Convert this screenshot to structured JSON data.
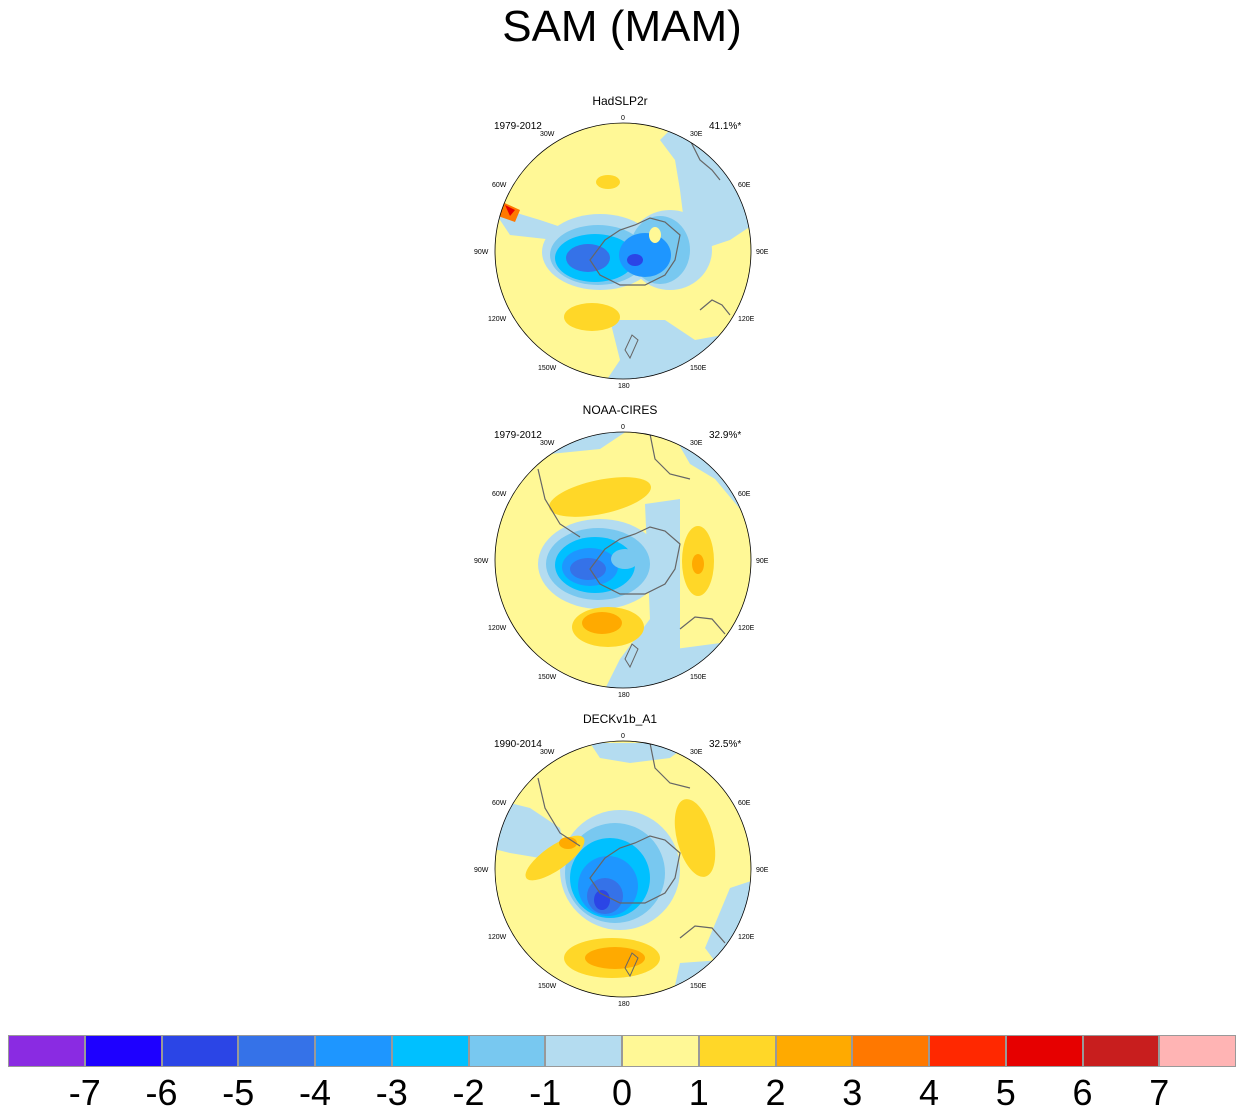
{
  "title": "SAM (MAM)",
  "panels": [
    {
      "name": "HadSLP2r",
      "period": "1979-2012",
      "percent": "41.1%*"
    },
    {
      "name": "NOAA-CIRES",
      "period": "1979-2012",
      "percent": "32.9%*"
    },
    {
      "name": "DECKv1b_A1",
      "period": "1990-2014",
      "percent": "32.5%*"
    }
  ],
  "lon_labels": {
    "n": "0",
    "nne": "30E",
    "ene": "60E",
    "e": "90E",
    "ese": "120E",
    "sse": "150E",
    "s": "180",
    "ssw": "150W",
    "wsw": "120W",
    "w": "90W",
    "wnw": "60W",
    "nnw": "30W"
  },
  "colorbar": {
    "colors": [
      "#8a2be2",
      "#1e00ff",
      "#2b45e6",
      "#3572e8",
      "#1e96ff",
      "#00c0ff",
      "#78c8f0",
      "#b4dcf0",
      "#fff896",
      "#ffd728",
      "#ffaa00",
      "#ff7800",
      "#ff2800",
      "#e60000",
      "#c81e1e",
      "#ffb4b4"
    ],
    "ticks": [
      "-7",
      "-6",
      "-5",
      "-4",
      "-3",
      "-2",
      "-1",
      "0",
      "1",
      "2",
      "3",
      "4",
      "5",
      "6",
      "7"
    ]
  }
}
